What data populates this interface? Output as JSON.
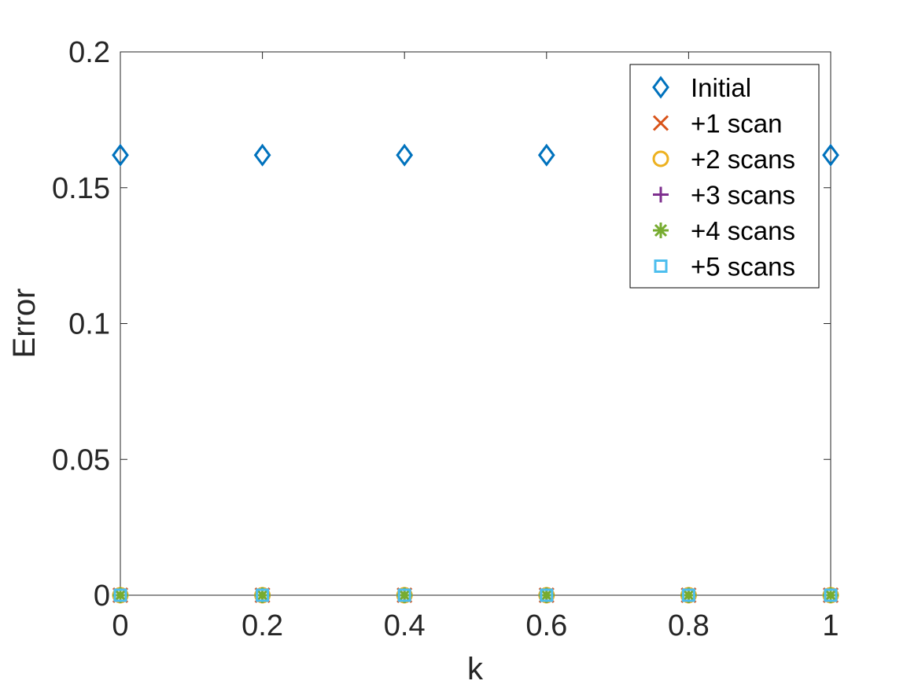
{
  "chart_data": {
    "type": "scatter",
    "title": "",
    "xlabel": "k",
    "ylabel": "Error",
    "xlim": [
      0,
      1
    ],
    "ylim": [
      0,
      0.2
    ],
    "xticks": [
      0,
      0.2,
      0.4,
      0.6,
      0.8,
      1
    ],
    "xtick_labels": [
      "0",
      "0.2",
      "0.4",
      "0.6",
      "0.8",
      "1"
    ],
    "yticks": [
      0,
      0.05,
      0.1,
      0.15,
      0.2
    ],
    "ytick_labels": [
      "0",
      "0.05",
      "0.1",
      "0.15",
      "0.2"
    ],
    "grid": false,
    "legend_position": "top-right",
    "x": [
      0,
      0.2,
      0.4,
      0.6,
      0.8,
      1
    ],
    "series": [
      {
        "name": "Initial",
        "marker": "diamond",
        "color": "#0072BD",
        "values": [
          0.162,
          0.162,
          0.162,
          0.162,
          0.162,
          0.162
        ]
      },
      {
        "name": "+1 scan",
        "marker": "x",
        "color": "#D95319",
        "values": [
          0,
          0,
          0,
          0,
          0,
          0
        ]
      },
      {
        "name": "+2 scans",
        "marker": "circle",
        "color": "#EDB120",
        "values": [
          0,
          0,
          0,
          0,
          0,
          0
        ]
      },
      {
        "name": "+3 scans",
        "marker": "plus",
        "color": "#7E2F8E",
        "values": [
          0,
          0,
          0,
          0,
          0,
          0
        ]
      },
      {
        "name": "+4 scans",
        "marker": "asterisk",
        "color": "#77AC30",
        "values": [
          0,
          0,
          0,
          0,
          0,
          0
        ]
      },
      {
        "name": "+5 scans",
        "marker": "square",
        "color": "#4DBEEE",
        "values": [
          0,
          0,
          0,
          0,
          0,
          0
        ]
      }
    ]
  }
}
